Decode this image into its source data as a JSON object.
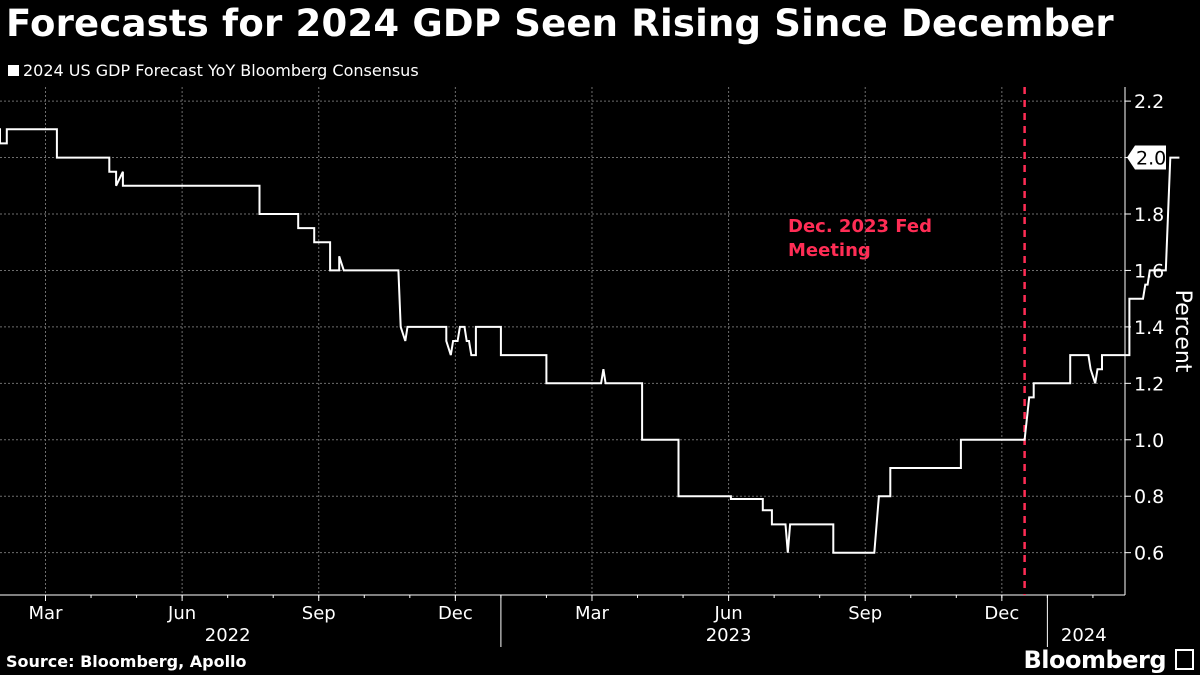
{
  "title": "Forecasts for 2024 GDP Seen Rising Since December",
  "legend": "2024 US GDP Forecast YoY Bloomberg Consensus",
  "source": "Source: Bloomberg, Apollo",
  "brand": "Bloomberg",
  "colors": {
    "line": "#ffffff",
    "annotation": "#ff2d55",
    "grid": "#6e6e6e",
    "background": "#000000"
  },
  "chart_data": {
    "type": "line",
    "title": "Forecasts for 2024 GDP Seen Rising Since December",
    "ylabel": "Percent",
    "ylim": [
      0.45,
      2.25
    ],
    "yticks": [
      0.6,
      0.8,
      1.0,
      1.2,
      1.4,
      1.6,
      1.8,
      2.0,
      2.2
    ],
    "ytick_labels": [
      "0.6",
      "0.8",
      "1.0",
      "1.2",
      "1.4",
      "1.6",
      "1.8",
      "2.0",
      "2.2"
    ],
    "xlim": [
      0,
      26.1
    ],
    "x_unit": "months since 2022-01-01",
    "xticks": [
      {
        "x": 2,
        "label": "Mar"
      },
      {
        "x": 5,
        "label": "Jun"
      },
      {
        "x": 8,
        "label": "Sep"
      },
      {
        "x": 11,
        "label": "Dec"
      },
      {
        "x": 14,
        "label": "Mar"
      },
      {
        "x": 17,
        "label": "Jun"
      },
      {
        "x": 20,
        "label": "Sep"
      },
      {
        "x": 23,
        "label": "Dec"
      }
    ],
    "year_labels": [
      {
        "x": 6.0,
        "label": "2022"
      },
      {
        "x": 17.0,
        "label": "2023"
      },
      {
        "x": 24.8,
        "label": "2024"
      }
    ],
    "year_dividers": [
      12,
      24
    ],
    "last_value_label": "2.0",
    "last_value": 2.0,
    "annotation": {
      "x": 23.5,
      "label_lines": [
        "Dec. 2023 Fed",
        "Meeting"
      ]
    },
    "series": [
      {
        "name": "2024 US GDP Forecast YoY Bloomberg Consensus",
        "points": [
          [
            0.9,
            2.1
          ],
          [
            1.0,
            2.1
          ],
          [
            1.0,
            2.05
          ],
          [
            1.15,
            2.05
          ],
          [
            1.15,
            2.1
          ],
          [
            2.25,
            2.1
          ],
          [
            2.25,
            2.0
          ],
          [
            3.4,
            2.0
          ],
          [
            3.4,
            1.95
          ],
          [
            3.55,
            1.95
          ],
          [
            3.55,
            1.9
          ],
          [
            3.7,
            1.95
          ],
          [
            3.7,
            1.9
          ],
          [
            6.7,
            1.9
          ],
          [
            6.7,
            1.8
          ],
          [
            7.55,
            1.8
          ],
          [
            7.55,
            1.75
          ],
          [
            7.9,
            1.75
          ],
          [
            7.9,
            1.7
          ],
          [
            8.25,
            1.7
          ],
          [
            8.25,
            1.6
          ],
          [
            8.45,
            1.6
          ],
          [
            8.45,
            1.65
          ],
          [
            8.55,
            1.6
          ],
          [
            9.75,
            1.6
          ],
          [
            9.8,
            1.4
          ],
          [
            9.9,
            1.35
          ],
          [
            9.95,
            1.4
          ],
          [
            10.8,
            1.4
          ],
          [
            10.8,
            1.35
          ],
          [
            10.9,
            1.3
          ],
          [
            10.95,
            1.35
          ],
          [
            11.05,
            1.35
          ],
          [
            11.1,
            1.4
          ],
          [
            11.2,
            1.4
          ],
          [
            11.25,
            1.35
          ],
          [
            11.3,
            1.35
          ],
          [
            11.35,
            1.3
          ],
          [
            11.45,
            1.3
          ],
          [
            11.45,
            1.4
          ],
          [
            12.0,
            1.4
          ],
          [
            12.0,
            1.3
          ],
          [
            13.0,
            1.3
          ],
          [
            13.0,
            1.2
          ],
          [
            14.2,
            1.2
          ],
          [
            14.25,
            1.25
          ],
          [
            14.3,
            1.2
          ],
          [
            15.1,
            1.2
          ],
          [
            15.1,
            1.0
          ],
          [
            15.9,
            1.0
          ],
          [
            15.9,
            0.8
          ],
          [
            17.05,
            0.8
          ],
          [
            17.05,
            0.79
          ],
          [
            17.75,
            0.79
          ],
          [
            17.75,
            0.75
          ],
          [
            17.95,
            0.75
          ],
          [
            17.95,
            0.7
          ],
          [
            18.25,
            0.7
          ],
          [
            18.3,
            0.6
          ],
          [
            18.35,
            0.7
          ],
          [
            19.3,
            0.7
          ],
          [
            19.3,
            0.6
          ],
          [
            20.2,
            0.6
          ],
          [
            20.3,
            0.8
          ],
          [
            20.55,
            0.8
          ],
          [
            20.55,
            0.9
          ],
          [
            22.1,
            0.9
          ],
          [
            22.1,
            1.0
          ],
          [
            23.5,
            1.0
          ],
          [
            23.6,
            1.15
          ],
          [
            23.7,
            1.15
          ],
          [
            23.7,
            1.2
          ],
          [
            24.5,
            1.2
          ],
          [
            24.5,
            1.3
          ],
          [
            24.9,
            1.3
          ],
          [
            24.95,
            1.25
          ],
          [
            25.05,
            1.2
          ],
          [
            25.1,
            1.25
          ],
          [
            25.2,
            1.25
          ],
          [
            25.2,
            1.3
          ],
          [
            25.8,
            1.3
          ],
          [
            25.8,
            1.5
          ],
          [
            26.1,
            1.5
          ],
          [
            26.15,
            1.55
          ],
          [
            26.2,
            1.55
          ],
          [
            26.25,
            1.6
          ],
          [
            26.6,
            1.6
          ],
          [
            26.7,
            2.0
          ],
          [
            26.9,
            2.0
          ]
        ]
      }
    ]
  }
}
